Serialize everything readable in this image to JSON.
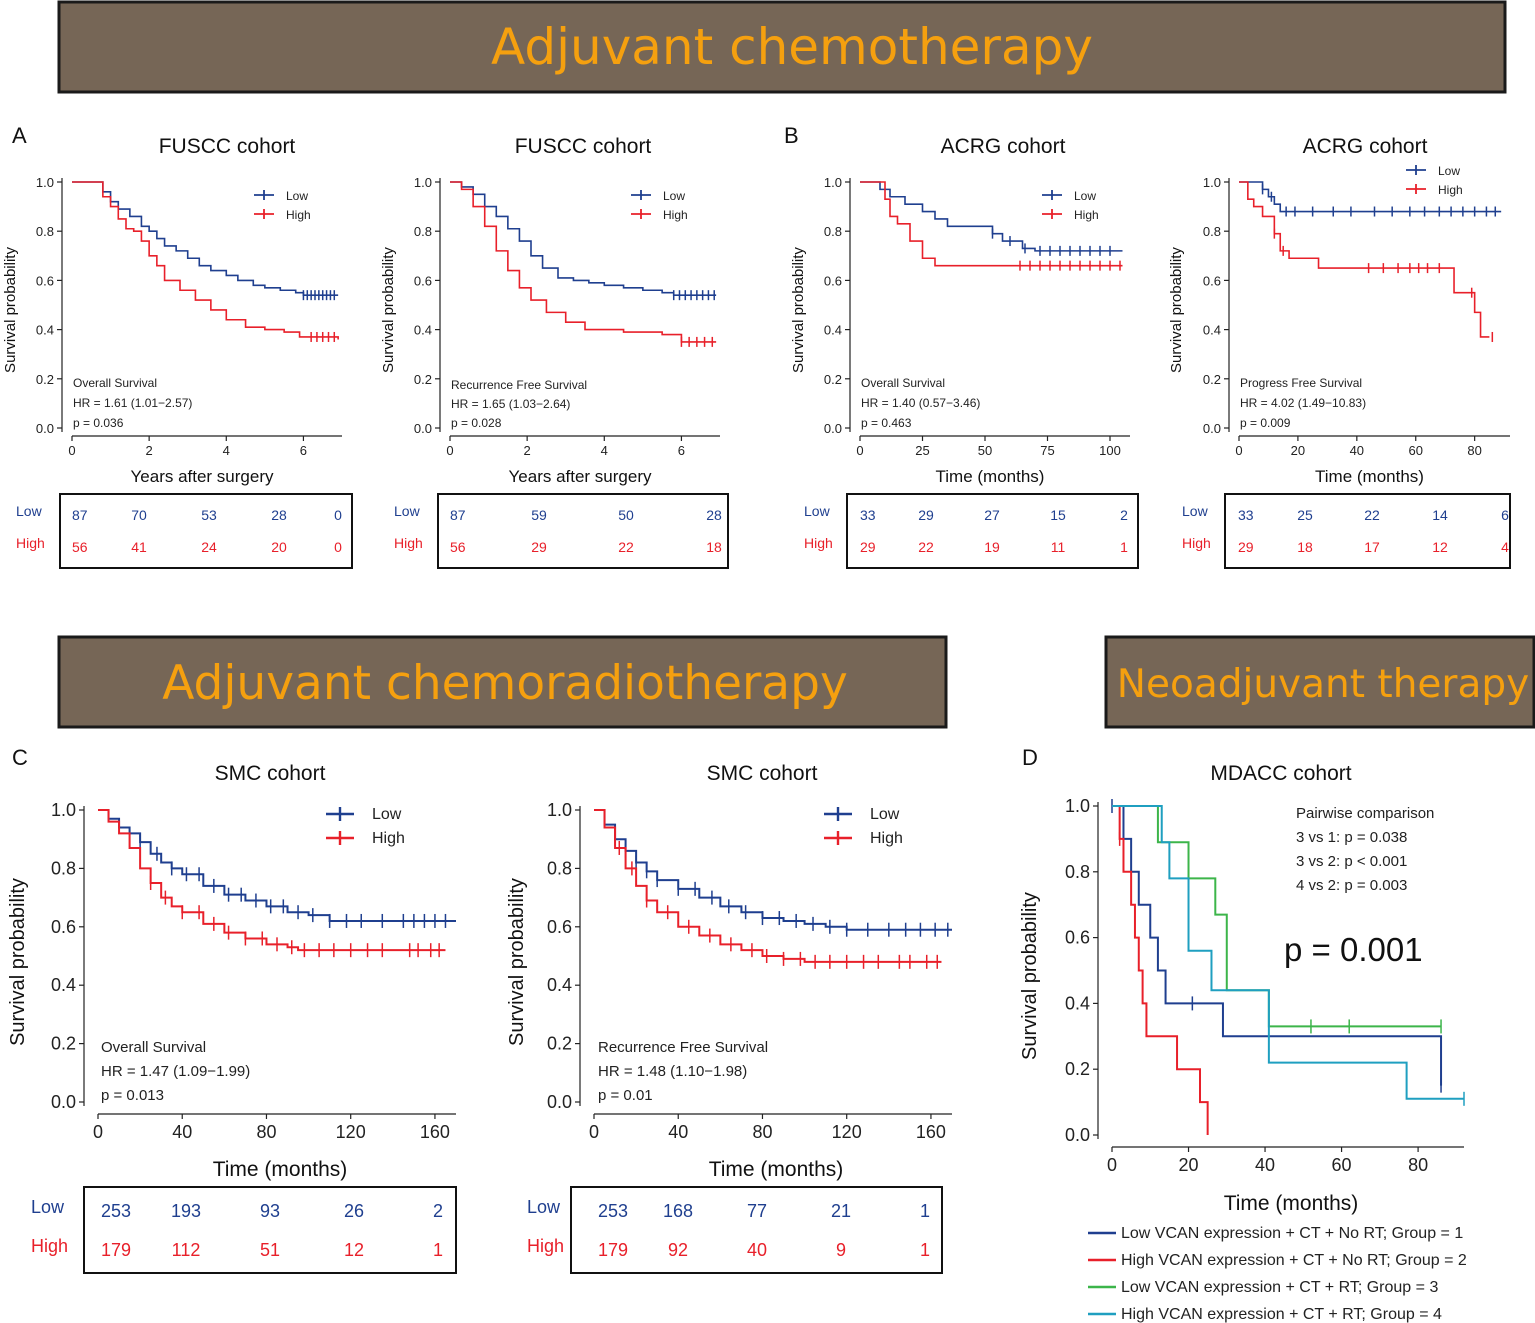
{
  "colors": {
    "low": "#1f3f8f",
    "high": "#e8202a",
    "g1": "#1f3f8f",
    "g2": "#e8202a",
    "g3": "#3cb54a",
    "g4": "#1f9fc0",
    "banner_bg": "#766656",
    "banner_text": "#f5a00f"
  },
  "banners": {
    "chemo": "Adjuvant chemotherapy",
    "chemorad": "Adjuvant chemoradiotherapy",
    "neo": "Neoadjuvant therapy"
  },
  "panel_labels": [
    "A",
    "B",
    "C",
    "D"
  ],
  "risk_row_labels": {
    "low": "Low",
    "high": "High"
  },
  "chart_data": [
    {
      "id": "fuscc_os",
      "type": "line",
      "title": "FUSCC cohort",
      "xlabel": "Years after surgery",
      "ylabel": "Survival probability",
      "xlim": [
        0,
        7
      ],
      "ylim": [
        0,
        1
      ],
      "xticks": [
        0,
        2,
        4,
        6
      ],
      "yticks": [
        "0.0",
        "0.2",
        "0.4",
        "0.6",
        "0.8",
        "1.0"
      ],
      "legend": [
        "Low",
        "High"
      ],
      "annotations": [
        "Overall Survival",
        "HR = 1.61 (1.01−2.57)",
        "p = 0.036"
      ],
      "series": [
        {
          "name": "Low",
          "color_key": "low",
          "x": [
            0,
            0.8,
            1.0,
            1.2,
            1.5,
            1.8,
            2.0,
            2.2,
            2.4,
            2.7,
            3.0,
            3.3,
            3.6,
            4.0,
            4.3,
            4.7,
            5.0,
            5.4,
            5.8,
            6.0,
            6.9
          ],
          "y": [
            1.0,
            0.96,
            0.92,
            0.89,
            0.86,
            0.82,
            0.8,
            0.77,
            0.74,
            0.72,
            0.69,
            0.66,
            0.64,
            0.62,
            0.6,
            0.58,
            0.57,
            0.56,
            0.55,
            0.54,
            0.54
          ],
          "censor_x": [
            6.0,
            6.1,
            6.2,
            6.3,
            6.4,
            6.5,
            6.6,
            6.7,
            6.8
          ]
        },
        {
          "name": "High",
          "color_key": "high",
          "x": [
            0,
            0.8,
            1.0,
            1.2,
            1.4,
            1.6,
            1.8,
            2.0,
            2.2,
            2.4,
            2.8,
            3.2,
            3.6,
            4.0,
            4.5,
            5.0,
            5.5,
            5.9,
            6.9
          ],
          "y": [
            1.0,
            0.94,
            0.9,
            0.85,
            0.81,
            0.8,
            0.76,
            0.7,
            0.66,
            0.6,
            0.56,
            0.52,
            0.48,
            0.44,
            0.41,
            0.4,
            0.39,
            0.37,
            0.36
          ],
          "censor_x": [
            6.2,
            6.35,
            6.5,
            6.65,
            6.8
          ]
        }
      ],
      "risk_table": {
        "low": [
          "87",
          "70",
          "53",
          "28",
          "0"
        ],
        "high": [
          "56",
          "41",
          "24",
          "20",
          "0"
        ]
      }
    },
    {
      "id": "fuscc_rfs",
      "type": "line",
      "title": "FUSCC cohort",
      "xlabel": "Years after surgery",
      "ylabel": "Survival probability",
      "xlim": [
        0,
        7
      ],
      "ylim": [
        0,
        1
      ],
      "xticks": [
        0,
        2,
        4,
        6
      ],
      "yticks": [
        "0.0",
        "0.2",
        "0.4",
        "0.6",
        "0.8",
        "1.0"
      ],
      "legend": [
        "Low",
        "High"
      ],
      "annotations": [
        "Recurrence Free Survival",
        "HR = 1.65 (1.03−2.64)",
        "p = 0.028"
      ],
      "series": [
        {
          "name": "Low",
          "color_key": "low",
          "x": [
            0,
            0.3,
            0.6,
            0.9,
            1.2,
            1.5,
            1.8,
            2.1,
            2.4,
            2.8,
            3.2,
            3.6,
            4.0,
            4.5,
            5.0,
            5.5,
            5.8,
            6.9
          ],
          "y": [
            1.0,
            0.98,
            0.95,
            0.9,
            0.86,
            0.81,
            0.76,
            0.7,
            0.65,
            0.61,
            0.6,
            0.59,
            0.58,
            0.57,
            0.56,
            0.55,
            0.54,
            0.54
          ],
          "censor_x": [
            5.8,
            5.95,
            6.1,
            6.25,
            6.4,
            6.55,
            6.7,
            6.85
          ]
        },
        {
          "name": "High",
          "color_key": "high",
          "x": [
            0,
            0.3,
            0.6,
            0.9,
            1.2,
            1.5,
            1.8,
            2.1,
            2.5,
            3.0,
            3.5,
            4.5,
            5.5,
            6.0,
            6.9
          ],
          "y": [
            1.0,
            0.97,
            0.9,
            0.82,
            0.72,
            0.64,
            0.57,
            0.52,
            0.47,
            0.43,
            0.4,
            0.39,
            0.38,
            0.35,
            0.35
          ],
          "censor_x": [
            6.0,
            6.2,
            6.4,
            6.6,
            6.8
          ]
        }
      ],
      "risk_table": {
        "low": [
          "87",
          "59",
          "50",
          "28"
        ],
        "high": [
          "56",
          "29",
          "22",
          "18"
        ]
      }
    },
    {
      "id": "acrg_os",
      "type": "line",
      "title": "ACRG cohort",
      "xlabel": "Time (months)",
      "ylabel": "Survival probability",
      "xlim": [
        0,
        108
      ],
      "ylim": [
        0,
        1
      ],
      "xticks": [
        0,
        25,
        50,
        75,
        100
      ],
      "yticks": [
        "0.0",
        "0.2",
        "0.4",
        "0.6",
        "0.8",
        "1.0"
      ],
      "legend": [
        "Low",
        "High"
      ],
      "annotations": [
        "Overall Survival",
        "HR = 1.40 (0.57−3.46)",
        "p = 0.463"
      ],
      "series": [
        {
          "name": "Low",
          "color_key": "low",
          "x": [
            0,
            8,
            12,
            18,
            25,
            30,
            35,
            40,
            53,
            57,
            62,
            65,
            70,
            105
          ],
          "y": [
            1.0,
            0.97,
            0.94,
            0.91,
            0.88,
            0.85,
            0.82,
            0.82,
            0.79,
            0.76,
            0.76,
            0.73,
            0.72,
            0.72
          ],
          "censor_x": [
            53,
            60,
            66,
            72,
            76,
            80,
            84,
            88,
            92,
            96,
            100
          ]
        },
        {
          "name": "High",
          "color_key": "high",
          "x": [
            0,
            10,
            12,
            15,
            20,
            25,
            30,
            105
          ],
          "y": [
            1.0,
            0.93,
            0.86,
            0.83,
            0.76,
            0.69,
            0.66,
            0.66
          ],
          "censor_x": [
            64,
            68,
            72,
            76,
            80,
            84,
            88,
            92,
            96,
            100,
            104
          ]
        }
      ],
      "risk_table": {
        "low": [
          "33",
          "29",
          "27",
          "15",
          "2"
        ],
        "high": [
          "29",
          "22",
          "19",
          "11",
          "1"
        ]
      }
    },
    {
      "id": "acrg_pfs",
      "type": "line",
      "title": "ACRG cohort",
      "xlabel": "Time (months)",
      "ylabel": "Survival probability",
      "xlim": [
        0,
        92
      ],
      "ylim": [
        0,
        1
      ],
      "xticks": [
        0,
        20,
        40,
        60,
        80
      ],
      "yticks": [
        "0.0",
        "0.2",
        "0.4",
        "0.6",
        "0.8",
        "1.0"
      ],
      "legend": [
        "Low",
        "High"
      ],
      "annotations": [
        "Progress Free Survival",
        "HR = 4.02 (1.49−10.83)",
        "p = 0.009"
      ],
      "series": [
        {
          "name": "Low",
          "color_key": "low",
          "x": [
            0,
            8,
            10,
            12,
            14,
            89
          ],
          "y": [
            1.0,
            0.97,
            0.94,
            0.91,
            0.88,
            0.88
          ],
          "censor_x": [
            8,
            11,
            16,
            19,
            25,
            32,
            38,
            46,
            52,
            58,
            63,
            68,
            72,
            76,
            80,
            84,
            87
          ]
        },
        {
          "name": "High",
          "color_key": "high",
          "x": [
            0,
            3,
            5,
            8,
            12,
            14,
            17,
            27,
            73,
            80,
            82,
            85
          ],
          "y": [
            1.0,
            0.93,
            0.9,
            0.86,
            0.79,
            0.72,
            0.69,
            0.65,
            0.55,
            0.47,
            0.37,
            0.37
          ],
          "censor_x": [
            12,
            15,
            44,
            49,
            54,
            58,
            61,
            64,
            68,
            79,
            86
          ]
        }
      ],
      "risk_table": {
        "low": [
          "33",
          "25",
          "22",
          "14",
          "6"
        ],
        "high": [
          "29",
          "18",
          "17",
          "12",
          "4"
        ]
      }
    },
    {
      "id": "smc_os",
      "type": "line",
      "title": "SMC cohort",
      "xlabel": "Time (months)",
      "ylabel": "Survival probability",
      "xlim": [
        0,
        170
      ],
      "ylim": [
        0,
        1
      ],
      "xticks": [
        0,
        40,
        80,
        120,
        160
      ],
      "yticks": [
        "0.0",
        "0.2",
        "0.4",
        "0.6",
        "0.8",
        "1.0"
      ],
      "legend": [
        "Low",
        "High"
      ],
      "annotations": [
        "Overall Survival",
        "HR = 1.47 (1.09−1.99)",
        "p = 0.013"
      ],
      "series": [
        {
          "name": "Low",
          "color_key": "low",
          "x": [
            0,
            5,
            10,
            15,
            20,
            25,
            30,
            35,
            40,
            50,
            60,
            70,
            80,
            90,
            100,
            110,
            170
          ],
          "y": [
            1.0,
            0.97,
            0.94,
            0.92,
            0.89,
            0.85,
            0.82,
            0.8,
            0.78,
            0.74,
            0.71,
            0.69,
            0.67,
            0.65,
            0.64,
            0.62,
            0.62
          ],
          "censor_x": [
            20,
            28,
            35,
            42,
            48,
            55,
            62,
            68,
            75,
            82,
            88,
            95,
            102,
            110,
            118,
            125,
            135,
            145,
            150,
            155,
            160,
            165
          ]
        },
        {
          "name": "High",
          "color_key": "high",
          "x": [
            0,
            5,
            10,
            15,
            20,
            25,
            30,
            35,
            40,
            50,
            60,
            70,
            80,
            90,
            95,
            165
          ],
          "y": [
            1.0,
            0.96,
            0.92,
            0.87,
            0.8,
            0.75,
            0.7,
            0.67,
            0.65,
            0.61,
            0.58,
            0.56,
            0.54,
            0.53,
            0.52,
            0.52
          ],
          "censor_x": [
            25,
            32,
            40,
            48,
            55,
            62,
            70,
            78,
            85,
            92,
            98,
            105,
            112,
            120,
            128,
            135,
            148,
            152,
            158,
            162
          ]
        }
      ],
      "risk_table": {
        "low": [
          "253",
          "193",
          "93",
          "26",
          "2"
        ],
        "high": [
          "179",
          "112",
          "51",
          "12",
          "1"
        ]
      }
    },
    {
      "id": "smc_rfs",
      "type": "line",
      "title": "SMC cohort",
      "xlabel": "Time (months)",
      "ylabel": "Survival probability",
      "xlim": [
        0,
        170
      ],
      "ylim": [
        0,
        1
      ],
      "xticks": [
        0,
        40,
        80,
        120,
        160
      ],
      "yticks": [
        "0.0",
        "0.2",
        "0.4",
        "0.6",
        "0.8",
        "1.0"
      ],
      "legend": [
        "Low",
        "High"
      ],
      "annotations": [
        "Recurrence Free Survival",
        "HR = 1.48 (1.10−1.98)",
        "p = 0.01"
      ],
      "series": [
        {
          "name": "Low",
          "color_key": "low",
          "x": [
            0,
            5,
            10,
            15,
            20,
            25,
            30,
            40,
            50,
            60,
            70,
            80,
            90,
            100,
            110,
            120,
            170
          ],
          "y": [
            1.0,
            0.95,
            0.9,
            0.86,
            0.82,
            0.79,
            0.76,
            0.73,
            0.7,
            0.67,
            0.65,
            0.63,
            0.62,
            0.61,
            0.6,
            0.59,
            0.59
          ],
          "censor_x": [
            10,
            15,
            20,
            25,
            30,
            40,
            48,
            56,
            64,
            72,
            80,
            88,
            96,
            104,
            112,
            120,
            130,
            140,
            148,
            155,
            162,
            168
          ]
        },
        {
          "name": "High",
          "color_key": "high",
          "x": [
            0,
            5,
            10,
            15,
            20,
            25,
            30,
            40,
            50,
            60,
            70,
            80,
            90,
            100,
            165
          ],
          "y": [
            1.0,
            0.94,
            0.87,
            0.8,
            0.74,
            0.69,
            0.65,
            0.6,
            0.57,
            0.54,
            0.52,
            0.5,
            0.49,
            0.48,
            0.48
          ],
          "censor_x": [
            12,
            18,
            25,
            35,
            45,
            55,
            65,
            75,
            82,
            90,
            98,
            105,
            112,
            120,
            128,
            135,
            145,
            150,
            158,
            163
          ]
        }
      ],
      "risk_table": {
        "low": [
          "253",
          "168",
          "77",
          "21",
          "1"
        ],
        "high": [
          "179",
          "92",
          "40",
          "9",
          "1"
        ]
      }
    },
    {
      "id": "mdacc",
      "type": "line",
      "title": "MDACC cohort",
      "xlabel": "Time (months)",
      "ylabel": "Survival probability",
      "xlim": [
        0,
        92
      ],
      "ylim": [
        0,
        1
      ],
      "xticks": [
        0,
        20,
        40,
        60,
        80
      ],
      "yticks": [
        "0.0",
        "0.2",
        "0.4",
        "0.6",
        "0.8",
        "1.0"
      ],
      "annotations": [
        "Pairwise comparison",
        "3 vs 1: p = 0.038",
        "3 vs 2: p < 0.001",
        "4 vs 2: p = 0.003"
      ],
      "pvalue": "p = 0.001",
      "legend": [
        "Low VCAN expression + CT + No RT; Group = 1",
        "High VCAN expression + CT + No RT; Group = 2",
        "Low VCAN expression + CT + RT; Group = 3",
        "High VCAN expression + CT + RT; Group = 4"
      ],
      "series": [
        {
          "name": "Group = 1",
          "color_key": "g1",
          "x": [
            0,
            3,
            5,
            7,
            10,
            12,
            14,
            29,
            86
          ],
          "y": [
            1.0,
            0.9,
            0.8,
            0.7,
            0.6,
            0.5,
            0.4,
            0.3,
            0.15
          ],
          "censor_x": [
            0,
            21,
            86
          ]
        },
        {
          "name": "Group = 2",
          "color_key": "g2",
          "x": [
            0,
            2,
            3,
            5,
            6,
            7,
            8,
            9,
            12,
            17,
            20,
            23,
            25
          ],
          "y": [
            1.0,
            0.9,
            0.8,
            0.7,
            0.6,
            0.5,
            0.4,
            0.3,
            0.3,
            0.2,
            0.2,
            0.1,
            0.0
          ],
          "censor_x": [
            2
          ]
        },
        {
          "name": "Group = 3",
          "color_key": "g3",
          "x": [
            0,
            10,
            12,
            20,
            27,
            30,
            41,
            86
          ],
          "y": [
            1.0,
            1.0,
            0.89,
            0.78,
            0.67,
            0.44,
            0.33,
            0.33
          ],
          "censor_x": [
            52,
            62,
            86
          ]
        },
        {
          "name": "Group = 4",
          "color_key": "g4",
          "x": [
            0,
            10,
            13,
            15,
            20,
            26,
            33,
            41,
            77,
            92
          ],
          "y": [
            1.0,
            1.0,
            0.89,
            0.78,
            0.56,
            0.44,
            0.44,
            0.22,
            0.11,
            0.11
          ],
          "censor_x": [
            92
          ]
        }
      ]
    }
  ]
}
